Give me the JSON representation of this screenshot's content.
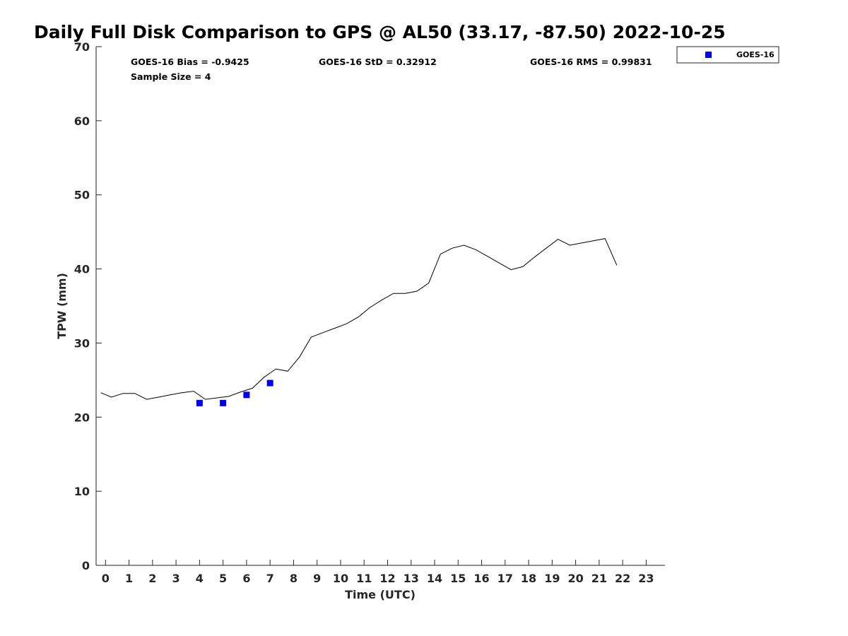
{
  "chart_data": {
    "type": "line",
    "title": "Daily Full Disk Comparison to GPS @ AL50 (33.17, -87.50) 2022-10-25",
    "xlabel": "Time (UTC)",
    "ylabel": "TPW (mm)",
    "xlim": [
      -0.4,
      23.8
    ],
    "ylim": [
      0,
      70
    ],
    "xticks": [
      0,
      1,
      2,
      3,
      4,
      5,
      6,
      7,
      8,
      9,
      10,
      11,
      12,
      13,
      14,
      15,
      16,
      17,
      18,
      19,
      20,
      21,
      22,
      23
    ],
    "yticks": [
      0,
      10,
      20,
      30,
      40,
      50,
      60,
      70
    ],
    "grid": false,
    "legend_position": "top-right",
    "stats": {
      "bias": "GOES-16 Bias = -0.9425",
      "std": "GOES-16 StD = 0.32912",
      "rms": "GOES-16 RMS = 0.99831",
      "sample": "Sample Size = 4"
    },
    "series": [
      {
        "style": "line",
        "color": "#000000",
        "x": [
          -0.2,
          0.25,
          0.75,
          1.25,
          1.75,
          2.25,
          2.75,
          3.25,
          3.75,
          4.25,
          4.75,
          5.25,
          5.75,
          6.25,
          6.75,
          7.25,
          7.75,
          8.25,
          8.75,
          9.25,
          9.75,
          10.25,
          10.75,
          11.25,
          11.75,
          12.25,
          12.75,
          13.25,
          13.75,
          14.25,
          14.75,
          15.25,
          15.75,
          16.25,
          16.75,
          17.25,
          17.75,
          18.25,
          18.75,
          19.25,
          19.75,
          20.25,
          20.75,
          21.25,
          21.75
        ],
        "y": [
          23.3,
          22.7,
          23.2,
          23.2,
          22.4,
          22.7,
          23.0,
          23.3,
          23.5,
          22.4,
          22.6,
          22.8,
          23.4,
          23.9,
          25.4,
          26.5,
          26.2,
          28.1,
          30.8,
          31.4,
          32.0,
          32.6,
          33.5,
          34.8,
          35.8,
          36.7,
          36.7,
          37.0,
          38.1,
          42.0,
          42.8,
          43.2,
          42.6,
          41.7,
          40.8,
          39.9,
          40.3,
          41.6,
          42.8,
          44.0,
          43.2,
          43.5,
          43.8,
          44.1,
          40.5
        ]
      },
      {
        "name": "GOES-16",
        "style": "marker",
        "marker": "square",
        "color": "#0000e6",
        "x": [
          4,
          5,
          6,
          7
        ],
        "y": [
          21.9,
          21.9,
          23.0,
          24.6
        ]
      }
    ]
  }
}
